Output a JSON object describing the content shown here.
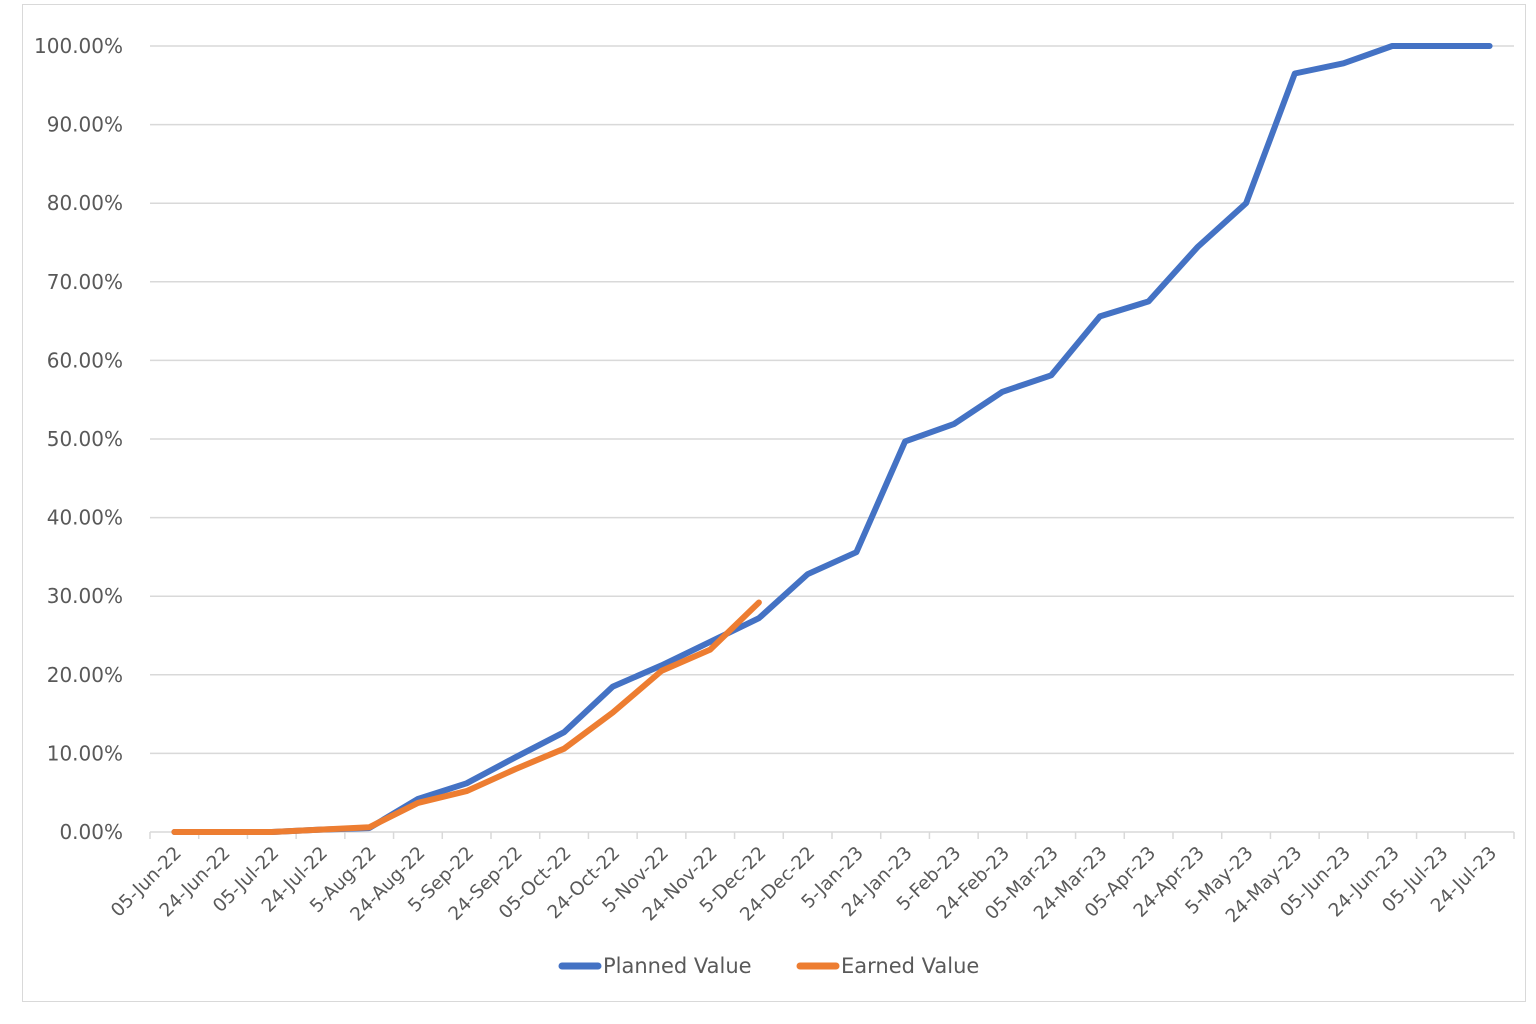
{
  "chart_data": {
    "type": "line",
    "title": "",
    "xlabel": "",
    "ylabel": "",
    "ylim": [
      0,
      1
    ],
    "yticks": [
      "0.00%",
      "10.00%",
      "20.00%",
      "30.00%",
      "40.00%",
      "50.00%",
      "60.00%",
      "70.00%",
      "80.00%",
      "90.00%",
      "100.00%"
    ],
    "grid": true,
    "legend_position": "bottom",
    "categories": [
      "05-Jun-22",
      "24-Jun-22",
      "05-Jul-22",
      "24-Jul-22",
      "5-Aug-22",
      "24-Aug-22",
      "5-Sep-22",
      "24-Sep-22",
      "05-Oct-22",
      "24-Oct-22",
      "5-Nov-22",
      "24-Nov-22",
      "5-Dec-22",
      "24-Dec-22",
      "5-Jan-23",
      "24-Jan-23",
      "5-Feb-23",
      "24-Feb-23",
      "05-Mar-23",
      "24-Mar-23",
      "05-Apr-23",
      "24-Apr-23",
      "5-May-23",
      "24-May-23",
      "05-Jun-23",
      "24-Jun-23",
      "05-Jul-23",
      "24-Jul-23"
    ],
    "series": [
      {
        "name": "Planned Value",
        "color": "#4472C4",
        "values": [
          0.0,
          0.0,
          0.0,
          0.003,
          0.005,
          0.042,
          0.062,
          0.095,
          0.127,
          0.185,
          0.212,
          0.242,
          0.272,
          0.328,
          0.356,
          0.497,
          0.519,
          0.56,
          0.581,
          0.656,
          0.675,
          0.744,
          0.8,
          0.965,
          0.978,
          1.0,
          1.0,
          1.0
        ]
      },
      {
        "name": "Earned Value",
        "color": "#ED7D31",
        "values": [
          0.0,
          0.0,
          0.0,
          0.003,
          0.006,
          0.037,
          0.052,
          0.08,
          0.106,
          0.152,
          0.205,
          0.232,
          0.292,
          null,
          null,
          null,
          null,
          null,
          null,
          null,
          null,
          null,
          null,
          null,
          null,
          null,
          null,
          null
        ]
      }
    ]
  },
  "legend": {
    "items": [
      {
        "label": "Planned Value",
        "color": "#4472C4"
      },
      {
        "label": "Earned Value",
        "color": "#ED7D31"
      }
    ]
  }
}
